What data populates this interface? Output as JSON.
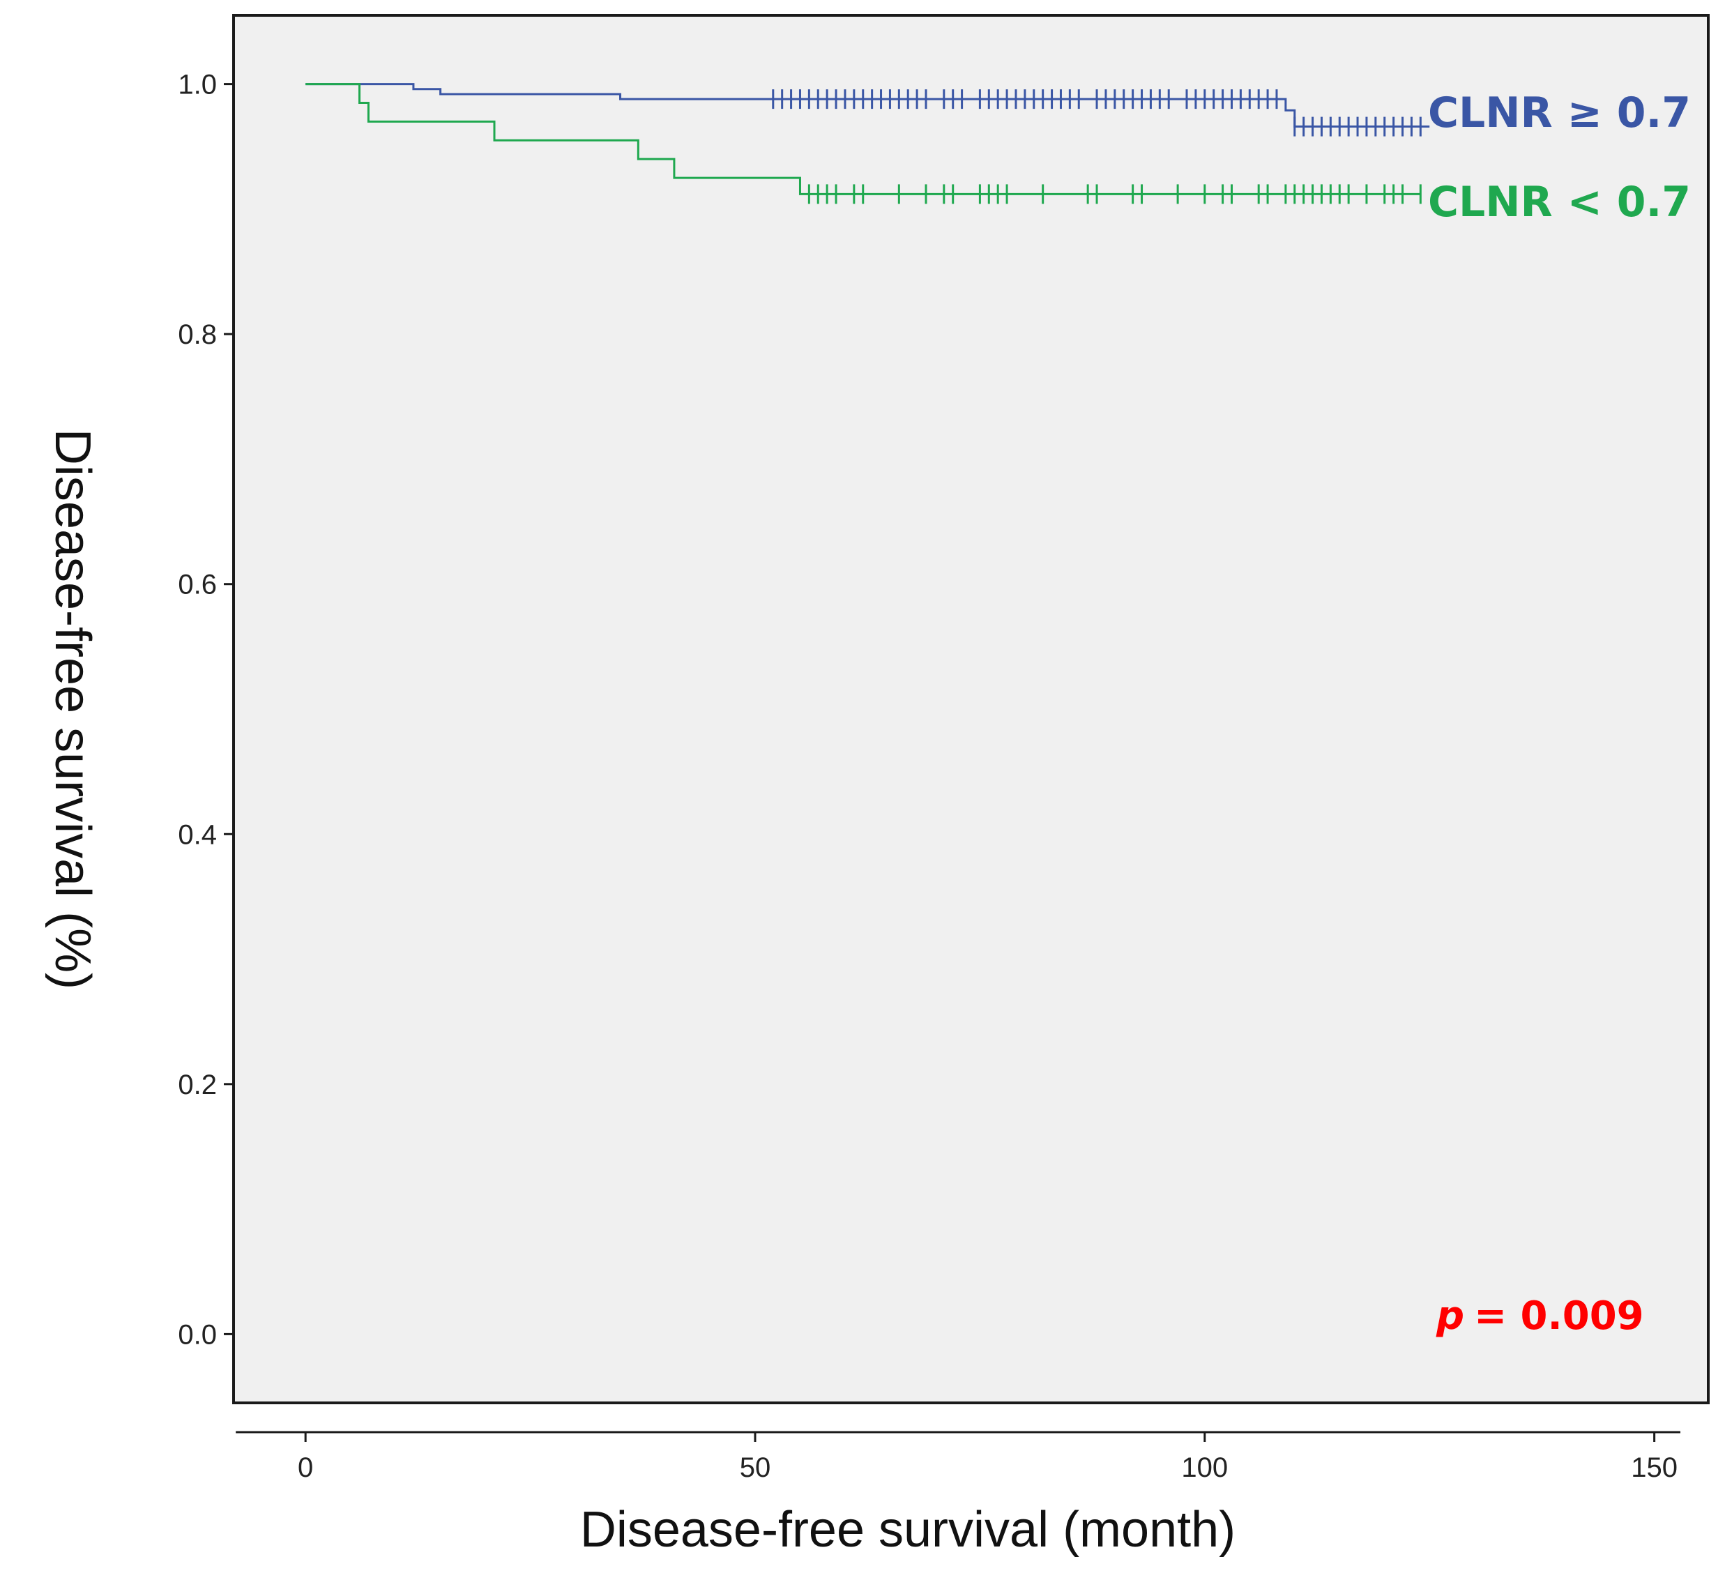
{
  "chart_data": {
    "type": "line",
    "title": "",
    "xlabel": "Disease-free survival (month)",
    "ylabel": "Disease-free survival (%)",
    "xlim": [
      -8,
      156
    ],
    "ylim": [
      -0.055,
      1.055
    ],
    "x_ticks": [
      0,
      50,
      100,
      150
    ],
    "x_tick_labels": [
      "0",
      "50",
      "100",
      "150"
    ],
    "y_ticks": [
      0.0,
      0.2,
      0.4,
      0.6,
      0.8,
      1.0
    ],
    "y_tick_labels": [
      "0.0",
      "0.2",
      "0.4",
      "0.6",
      "0.8",
      "1.0"
    ],
    "grid": false,
    "background": "#f0f0f0",
    "annotation": {
      "p_label": "p",
      "p_value_text": "= 0.009",
      "color": "#ff0000"
    },
    "series": [
      {
        "name": "CLNR ≥ 0.7",
        "color": "#3a56a5",
        "steps": [
          [
            0,
            1.0
          ],
          [
            12,
            0.996
          ],
          [
            15,
            0.992
          ],
          [
            35,
            0.988
          ],
          [
            109,
            0.979
          ],
          [
            110,
            0.966
          ],
          [
            125,
            0.966
          ]
        ],
        "censored": [
          52,
          53,
          54,
          55,
          56,
          57,
          58,
          59,
          60,
          61,
          62,
          63,
          64,
          65,
          66,
          67,
          68,
          69,
          71,
          72,
          73,
          75,
          76,
          77,
          78,
          79,
          80,
          81,
          82,
          83,
          84,
          85,
          86,
          88,
          89,
          90,
          91,
          92,
          93,
          94,
          95,
          96,
          98,
          99,
          100,
          101,
          102,
          103,
          104,
          105,
          106,
          107,
          108,
          110,
          111,
          112,
          113,
          114,
          115,
          116,
          117,
          118,
          119,
          120,
          121,
          122,
          123,
          124
        ]
      },
      {
        "name": "CLNR < 0.7",
        "color": "#1fa84f",
        "steps": [
          [
            0,
            1.0
          ],
          [
            6,
            0.985
          ],
          [
            7,
            0.97
          ],
          [
            21,
            0.955
          ],
          [
            37,
            0.94
          ],
          [
            41,
            0.925
          ],
          [
            55,
            0.912
          ],
          [
            124,
            0.912
          ]
        ],
        "censored": [
          56,
          57,
          58,
          59,
          61,
          62,
          66,
          69,
          71,
          72,
          75,
          76,
          77,
          78,
          82,
          87,
          88,
          92,
          93,
          97,
          100,
          102,
          103,
          106,
          107,
          109,
          110,
          111,
          112,
          113,
          114,
          115,
          116,
          118,
          120,
          121,
          122,
          124
        ]
      }
    ]
  }
}
